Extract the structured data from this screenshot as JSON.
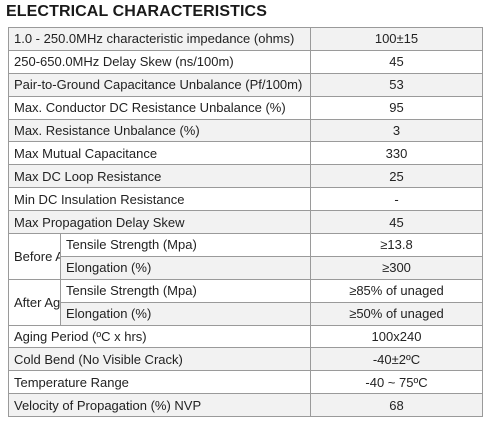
{
  "title": "ELECTRICAL CHARACTERISTICS",
  "rows": [
    {
      "label": "1.0 - 250.0MHz characteristic impedance (ohms)",
      "value": "100±15"
    },
    {
      "label": "250-650.0MHz Delay Skew (ns/100m)",
      "value": "45"
    },
    {
      "label": "Pair-to-Ground Capacitance Unbalance (Pf/100m)",
      "value": "53"
    },
    {
      "label": "Max. Conductor DC Resistance Unbalance (%)",
      "value": "95"
    },
    {
      "label": "Max. Resistance Unbalance (%)",
      "value": "3"
    },
    {
      "label": "Max Mutual Capacitance",
      "value": "330"
    },
    {
      "label": "Max DC Loop Resistance",
      "value": "25"
    },
    {
      "label": "Min DC Insulation Resistance",
      "value": "-"
    },
    {
      "label": "Max Propagation Delay Skew",
      "value": "45"
    }
  ],
  "before_aging": {
    "group_label": "Before Aging",
    "items": [
      {
        "label": "Tensile Strength (Mpa)",
        "value": "≥13.8"
      },
      {
        "label": "Elongation (%)",
        "value": "≥300"
      }
    ]
  },
  "after_aging": {
    "group_label": "After Aging",
    "items": [
      {
        "label": "Tensile Strength (Mpa)",
        "value": "≥85% of unaged"
      },
      {
        "label": "Elongation (%)",
        "value": "≥50% of unaged"
      }
    ]
  },
  "rows_after": [
    {
      "label": "Aging Period (ºC x hrs)",
      "value": "100x240"
    },
    {
      "label": "Cold Bend (No Visible Crack)",
      "value": "-40±2ºC"
    },
    {
      "label": "Temperature Range",
      "value": "-40 ~ 75ºC"
    },
    {
      "label": "Velocity of Propagation (%) NVP",
      "value": "68"
    }
  ]
}
